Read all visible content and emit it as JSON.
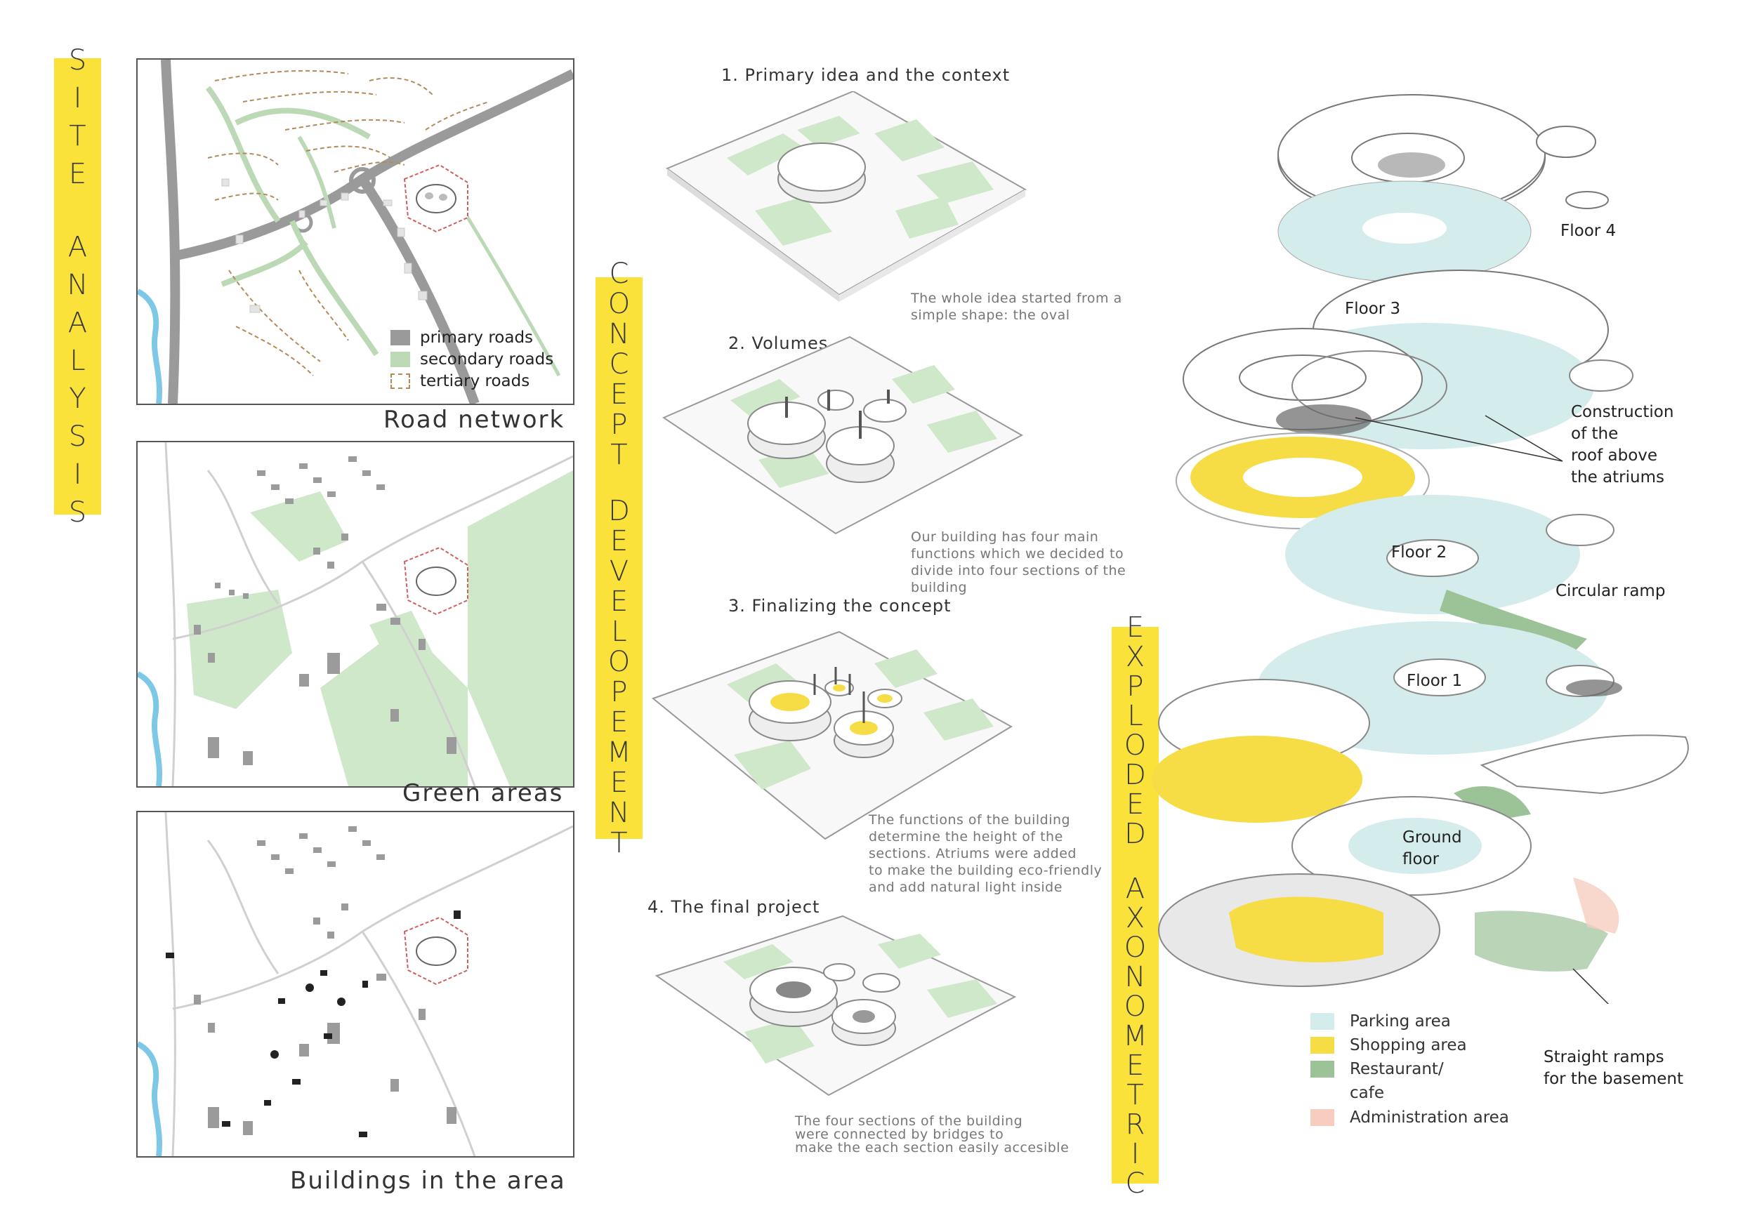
{
  "banners": {
    "site_analysis": "SITE ANALYSIS",
    "concept": "CONCEPT DEVELOPEMENT",
    "axonometric": "EXPLODED AXONOMETRIC"
  },
  "colors": {
    "banner_yellow": "#fbe23a",
    "green_area": "#cfe8c9",
    "primary_road": "#9a9a9a",
    "secondary_road": "#bcd9b6",
    "tertiary_road": "#b38a5a",
    "parking": "#d4ecec",
    "shopping": "#f6dc45",
    "restaurant": "#9cc298",
    "administration": "#f6cdbf"
  },
  "maps": {
    "road_network": {
      "title": "Road network",
      "legend": [
        {
          "label": "primary roads"
        },
        {
          "label": "secondary roads"
        },
        {
          "label": "tertiary roads"
        }
      ]
    },
    "green_areas": {
      "title": "Green areas"
    },
    "buildings": {
      "title": "Buildings in the area"
    }
  },
  "concept_steps": [
    {
      "title": "1. Primary idea and the context",
      "desc": [
        "The whole idea started from a",
        "simple shape: the oval"
      ]
    },
    {
      "title": "2. Volumes",
      "desc": [
        "Our building has four main",
        "functions which we decided to",
        "divide into four sections of the",
        "building"
      ]
    },
    {
      "title": "3. Finalizing the concept",
      "desc": [
        "The functions of the building",
        "determine the height of the",
        "sections. Atriums were added",
        "to make the building eco-friendly",
        "and add natural light inside"
      ]
    },
    {
      "title": "4. The final project",
      "desc": [
        "The four sections of the building",
        "were connected by bridges to",
        "make the each section easily accesible"
      ]
    }
  ],
  "axonometric": {
    "floor4": "Floor 4",
    "floor3": "Floor 3",
    "floor2": "Floor 2",
    "floor1": "Floor 1",
    "ground": [
      "Ground",
      "floor"
    ],
    "roof_note": [
      "Construction",
      "of the",
      "roof above",
      "the atriums"
    ],
    "ramp_note": "Circular ramp",
    "straight_ramps": [
      "Straight ramps",
      "for the basement"
    ],
    "legend": [
      {
        "label": "Parking area"
      },
      {
        "label": "Shopping area"
      },
      {
        "label": "Restaurant/",
        "label2": "cafe"
      },
      {
        "label": "Administration area"
      }
    ]
  }
}
